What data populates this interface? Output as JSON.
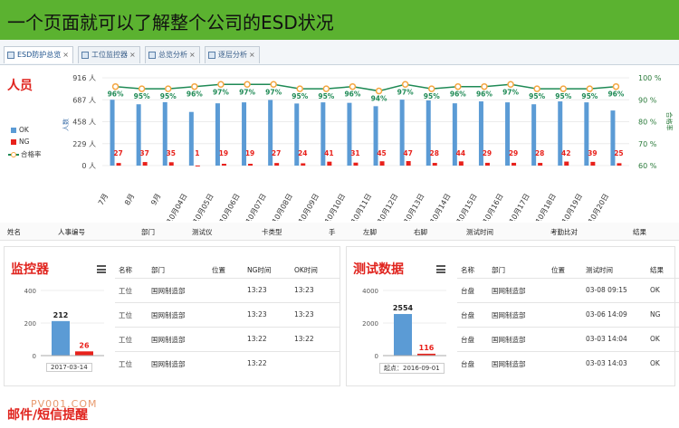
{
  "banner": {
    "title": "一个页面就可以了解整个公司的ESD状况"
  },
  "tabs": [
    {
      "label": "ESD防护总览",
      "close": "×"
    },
    {
      "label": "工位监控器",
      "close": "×"
    },
    {
      "label": "总览分析",
      "close": "×"
    },
    {
      "label": "逐层分析",
      "close": "×"
    }
  ],
  "personnel": {
    "title": "人员",
    "legend": {
      "ok": "OK",
      "ng": "NG",
      "rate": "合格率"
    },
    "ylabel_left": "人数",
    "ylabel_right": "合格率"
  },
  "chart_data": {
    "type": "bar",
    "categories": [
      "7月",
      "8月",
      "9月",
      "10月04日",
      "10月05日",
      "10月06日",
      "10月07日",
      "10月08日",
      "10月09日",
      "10月10日",
      "10月11日",
      "10月12日",
      "10月13日",
      "10月14日",
      "10月15日",
      "10月16日",
      "10月17日",
      "10月18日",
      "10月19日",
      "10月20日"
    ],
    "series": [
      {
        "name": "OK",
        "axis": "left",
        "color": "#5b9bd5",
        "values": [
          687,
          640,
          662,
          560,
          650,
          660,
          685,
          648,
          660,
          655,
          620,
          688,
          680,
          650,
          670,
          660,
          640,
          670,
          660,
          575
        ]
      },
      {
        "name": "NG",
        "axis": "left",
        "color": "#e8211b",
        "values": [
          27,
          37,
          35,
          1,
          19,
          19,
          27,
          24,
          41,
          31,
          45,
          47,
          28,
          44,
          29,
          29,
          28,
          42,
          39,
          25
        ]
      },
      {
        "name": "合格率",
        "axis": "right",
        "color": "#1f8a55",
        "values": [
          96,
          95,
          95,
          96,
          97,
          97,
          97,
          95,
          95,
          96,
          94,
          97,
          95,
          96,
          96,
          97,
          95,
          95,
          95,
          96
        ]
      }
    ],
    "ng_labels": [
      "27",
      "37",
      "35",
      "1",
      "19",
      "19",
      "27",
      "24",
      "41",
      "31",
      "45",
      "47",
      "28",
      "44",
      "29",
      "29",
      "28",
      "42",
      "39",
      "25"
    ],
    "rate_labels": [
      "96%",
      "95%",
      "95%",
      "96%",
      "97%",
      "97%",
      "97%",
      "95%",
      "95%",
      "96%",
      "94%",
      "97%",
      "95%",
      "96%",
      "96%",
      "97%",
      "95%",
      "95%",
      "95%",
      "96%"
    ],
    "y_ticks_left": [
      "916 人",
      "687 人",
      "458 人",
      "229 人",
      "0 人"
    ],
    "y_ticks_right": [
      "100 %",
      "90 %",
      "80 %",
      "70 %",
      "60 %"
    ],
    "ylim_left": [
      0,
      916
    ],
    "ylim_right": [
      60,
      100
    ]
  },
  "personnel_table_header": [
    "姓名",
    "人事编号",
    "部门",
    "测试仪",
    "卡类型",
    "手",
    "左脚",
    "右脚",
    "测试时间",
    "考勤比对",
    "结果"
  ],
  "monitor": {
    "title": "监控器",
    "chart": {
      "y_ticks": [
        "400",
        "200",
        "0"
      ],
      "values": [
        212,
        26
      ],
      "labels": [
        "212",
        "26"
      ],
      "colors": [
        "#5b9bd5",
        "#e8211b"
      ],
      "date": "2017-03-14",
      "ylim": [
        0,
        400
      ]
    },
    "table": {
      "headers": [
        "名称",
        "部门",
        "位置",
        "NG时间",
        "OK时间"
      ],
      "rows": [
        [
          "工位",
          "国网制造部",
          "",
          "13:23",
          "13:23"
        ],
        [
          "工位",
          "国网制造部",
          "",
          "13:23",
          "13:23"
        ],
        [
          "工位",
          "国网制造部",
          "",
          "13:22",
          "13:22"
        ],
        [
          "工位",
          "国网制造部",
          "",
          "13:22",
          ""
        ]
      ]
    }
  },
  "testdata": {
    "title": "测试数据",
    "chart": {
      "y_ticks": [
        "4000",
        "2000",
        "0"
      ],
      "values": [
        2554,
        116
      ],
      "labels": [
        "2554",
        "116"
      ],
      "colors": [
        "#5b9bd5",
        "#e8211b"
      ],
      "date": "起点：2016-09-01",
      "ylim": [
        0,
        4000
      ]
    },
    "table": {
      "headers": [
        "名称",
        "部门",
        "位置",
        "测试时间",
        "结果"
      ],
      "rows": [
        [
          "台盘",
          "国网制造部",
          "",
          "03-08 09:15",
          "OK"
        ],
        [
          "台盘",
          "国网制造部",
          "",
          "03-06 14:09",
          "NG"
        ],
        [
          "台盘",
          "国网制造部",
          "",
          "03-03 14:04",
          "OK"
        ],
        [
          "台盘",
          "国网制造部",
          "",
          "03-03 14:03",
          "OK"
        ]
      ]
    }
  },
  "footer": {
    "title": "邮件/短信提醒",
    "watermark": "PV001.COM"
  }
}
